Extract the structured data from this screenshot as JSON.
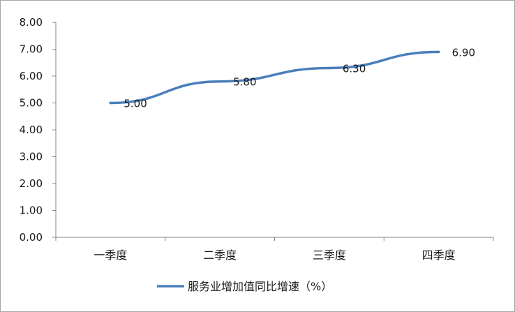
{
  "chart_data": {
    "type": "line",
    "title": "",
    "xlabel": "",
    "ylabel": "",
    "categories": [
      "一季度",
      "二季度",
      "三季度",
      "四季度"
    ],
    "series": [
      {
        "name": "服务业增加值同比增速（%）",
        "values": [
          5.0,
          5.8,
          6.3,
          6.9
        ],
        "data_labels": [
          "5.00",
          "5.80",
          "6.30",
          "6.90"
        ],
        "color": "#4a7ebb"
      }
    ],
    "ylim": [
      0,
      8
    ],
    "yticks": [
      0,
      1,
      2,
      3,
      4,
      5,
      6,
      7,
      8
    ],
    "ytick_labels": [
      "0.00",
      "1.00",
      "2.00",
      "3.00",
      "4.00",
      "5.00",
      "6.00",
      "7.00",
      "8.00"
    ],
    "grid": false,
    "legend_position": "bottom",
    "axis_color": "#868686"
  }
}
